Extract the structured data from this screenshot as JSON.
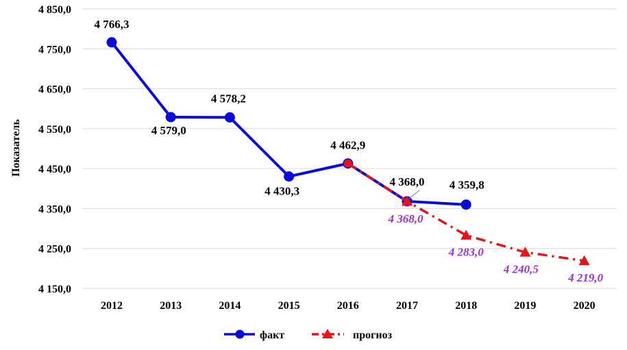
{
  "chart_data": {
    "type": "line",
    "ylabel": "Показатель",
    "ylim": [
      4150,
      4850
    ],
    "y_ticks": [
      4850,
      4750,
      4650,
      4550,
      4450,
      4350,
      4250,
      4150
    ],
    "y_tick_labels": [
      "4 850,0",
      "4 750,0",
      "4 650,0",
      "4 550,0",
      "4 450,0",
      "4 350,0",
      "4 250,0",
      "4 150,0"
    ],
    "categories": [
      "2012",
      "2013",
      "2014",
      "2015",
      "2016",
      "2017",
      "2018",
      "2019",
      "2020"
    ],
    "grid": "horizontal",
    "legend_position": "bottom",
    "series": [
      {
        "name": "факт",
        "color": "#0a0adc",
        "marker": "circle",
        "x": [
          "2012",
          "2013",
          "2014",
          "2015",
          "2016",
          "2017",
          "2018"
        ],
        "values": [
          4766.3,
          4579.0,
          4578.2,
          4430.3,
          4462.9,
          4368.0,
          4359.8
        ],
        "labels": [
          "4 766,3",
          "4 579,0",
          "4 578,2",
          "4 430,3",
          "4 462,9",
          "4 368,0",
          "4 359,8"
        ]
      },
      {
        "name": "прогноз",
        "color": "#e8121a",
        "label_color": "#9b2fd1",
        "marker": "triangle",
        "x": [
          "2016",
          "2017",
          "2018",
          "2019",
          "2020"
        ],
        "values": [
          4462.9,
          4368.0,
          4283.0,
          4240.5,
          4219.0
        ],
        "labels": [
          "",
          "4 368,0",
          "4 283,0",
          "4 240,5",
          "4 219,0"
        ]
      }
    ]
  }
}
